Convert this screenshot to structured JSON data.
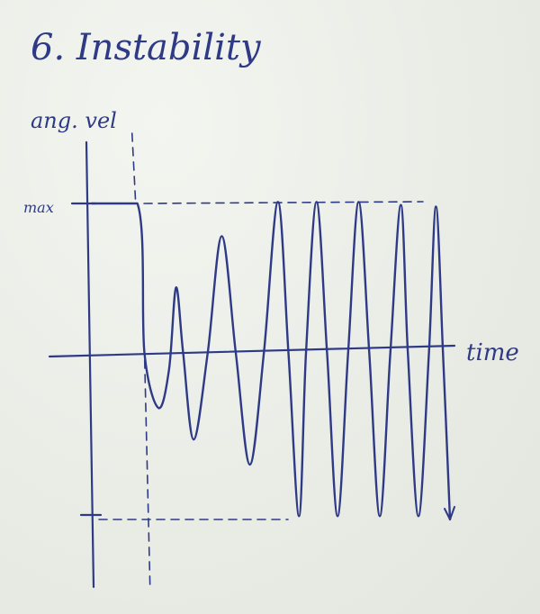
{
  "chart_data": {
    "type": "line",
    "title": "6. Instability",
    "ylabel": "ang. vel",
    "xlabel": "time",
    "y_tick_labels": [
      "max"
    ],
    "ylim": [
      -1,
      1
    ],
    "grid": false,
    "legend": "none",
    "series": [
      {
        "points": [
          [
            0.0,
            0.96
          ],
          [
            0.13,
            0.96
          ],
          [
            0.15,
            0.0
          ],
          [
            0.19,
            -0.33
          ],
          [
            0.22,
            -0.1
          ],
          [
            0.24,
            0.42
          ],
          [
            0.26,
            0.0
          ],
          [
            0.29,
            -0.52
          ],
          [
            0.33,
            0.0
          ],
          [
            0.37,
            0.75
          ],
          [
            0.41,
            0.0
          ],
          [
            0.45,
            -0.67
          ],
          [
            0.49,
            0.0
          ],
          [
            0.53,
            0.97
          ],
          [
            0.56,
            0.0
          ],
          [
            0.59,
            -0.98
          ],
          [
            0.61,
            0.0
          ],
          [
            0.64,
            0.97
          ],
          [
            0.67,
            0.0
          ],
          [
            0.7,
            -0.98
          ],
          [
            0.73,
            0.0
          ],
          [
            0.76,
            0.97
          ],
          [
            0.79,
            0.0
          ],
          [
            0.82,
            -0.98
          ],
          [
            0.85,
            0.0
          ],
          [
            0.88,
            0.95
          ],
          [
            0.9,
            0.0
          ],
          [
            0.93,
            -0.98
          ],
          [
            0.96,
            0.0
          ],
          [
            0.98,
            0.94
          ],
          [
            1.0,
            0.0
          ],
          [
            1.02,
            -1.0
          ]
        ]
      }
    ],
    "reference_lines": {
      "max": 0.96,
      "min": -1.0,
      "onset_time": 0.13
    }
  },
  "colors": {
    "ink": "#2f3a86",
    "paper": "#eef0ea"
  }
}
